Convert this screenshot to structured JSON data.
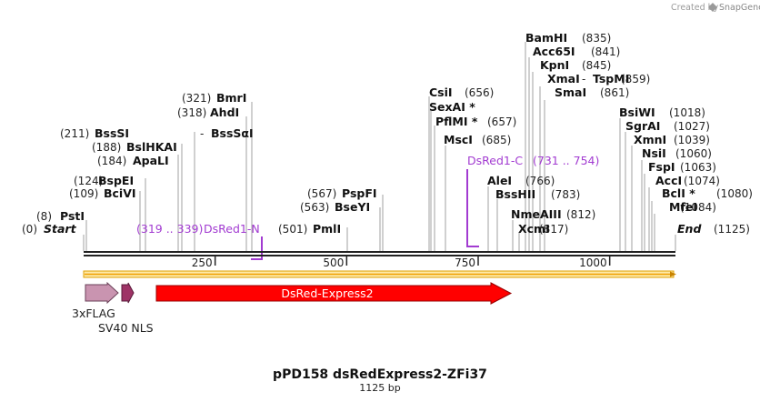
{
  "credit": {
    "prefix": "Created by",
    "brand": "SnapGene"
  },
  "title": "pPD158 dsRedExpress2-ZFi37",
  "length": "1125 bp",
  "ends": {
    "start_label": "Start",
    "start_pos": "(0)",
    "end_label": "End",
    "end_pos": "(1125)"
  },
  "ticks": [
    250,
    500,
    750,
    1000
  ],
  "sites": [
    {
      "id": "psti",
      "name": "PstI",
      "pos": "(8)",
      "bp": 8
    },
    {
      "id": "bcivi",
      "name": "BciVI",
      "pos": "(109)",
      "bp": 109
    },
    {
      "id": "bspei",
      "name": "BspEI",
      "pos": "(124)",
      "bp": 124
    },
    {
      "id": "apali",
      "name": "ApaLI",
      "pos": "(184)",
      "bp": 184
    },
    {
      "id": "bslhkai",
      "name": "BslHKAI",
      "pos": "(188)",
      "bp": 188
    },
    {
      "id": "bsssi",
      "name": "BssSI",
      "sep": "-",
      "name2": "BssSαI",
      "pos": "(211)",
      "bp": 211
    },
    {
      "id": "ahdi",
      "name": "AhdI",
      "pos": "(318)",
      "bp": 318
    },
    {
      "id": "bmri",
      "name": "BmrI",
      "pos": "(321)",
      "bp": 321
    },
    {
      "id": "pmli",
      "name": "PmlI",
      "pos": "(501)",
      "bp": 501
    },
    {
      "id": "bseyi",
      "name": "BseYI",
      "pos": "(563)",
      "bp": 563
    },
    {
      "id": "pspfi",
      "name": "PspFI",
      "pos": "(567)",
      "bp": 567
    },
    {
      "id": "csii",
      "name": "CsiI",
      "pos": "(656)",
      "bp": 656
    },
    {
      "id": "sexai",
      "name": "SexAI *",
      "pos": "",
      "bp": 656
    },
    {
      "id": "pflmi",
      "name": "PflMI *",
      "pos": "(657)",
      "bp": 657
    },
    {
      "id": "msci",
      "name": "MscI",
      "pos": "(685)",
      "bp": 685
    },
    {
      "id": "alei",
      "name": "AleI",
      "pos": "(766)",
      "bp": 766
    },
    {
      "id": "bsshii",
      "name": "BssHII",
      "pos": "(783)",
      "bp": 783
    },
    {
      "id": "nmeaiii",
      "name": "NmeAIII",
      "pos": "(812)",
      "bp": 812
    },
    {
      "id": "xcmi",
      "name": "XcmI",
      "pos": "(817)",
      "bp": 817
    },
    {
      "id": "bamhi",
      "name": "BamHI",
      "pos": "(835)",
      "bp": 835
    },
    {
      "id": "acc65i",
      "name": "Acc65I",
      "pos": "(841)",
      "bp": 841
    },
    {
      "id": "kpni",
      "name": "KpnI",
      "pos": "(845)",
      "bp": 845
    },
    {
      "id": "xmai",
      "name": "XmaI",
      "sep": "-",
      "name2": "TspMI",
      "pos": "(859)",
      "bp": 859
    },
    {
      "id": "smai",
      "name": "SmaI",
      "pos": "(861)",
      "bp": 861
    },
    {
      "id": "bsiwi",
      "name": "BsiWI",
      "pos": "(1018)",
      "bp": 1018
    },
    {
      "id": "sgrai",
      "name": "SgrAI",
      "pos": "(1027)",
      "bp": 1027
    },
    {
      "id": "xmni",
      "name": "XmnI",
      "pos": "(1039)",
      "bp": 1039
    },
    {
      "id": "nsii",
      "name": "NsiI",
      "pos": "(1060)",
      "bp": 1060
    },
    {
      "id": "fspi",
      "name": "FspI",
      "pos": "(1063)",
      "bp": 1063
    },
    {
      "id": "acci",
      "name": "AccI",
      "pos": "(1074)",
      "bp": 1074
    },
    {
      "id": "bcli",
      "name": "BclI *",
      "pos": "(1080)",
      "bp": 1080
    },
    {
      "id": "mfei",
      "name": "MfeI",
      "pos": "(1084)",
      "bp": 1084
    }
  ],
  "primers": [
    {
      "id": "dsred1-n",
      "name": "DsRed1-N",
      "range": "(319 .. 339)"
    },
    {
      "id": "dsred1-c",
      "name": "DsRed1-C",
      "range": "(731 .. 754)"
    }
  ],
  "features": [
    {
      "id": "3xflag",
      "name": "3xFLAG",
      "color": "#c994b0"
    },
    {
      "id": "sv40-nls",
      "name": "SV40 NLS",
      "color": "#9e3366"
    },
    {
      "id": "dsred-express2",
      "name": "DsRed-Express2",
      "color": "#ff0000"
    }
  ],
  "colors": {
    "primer": "#a23bd1",
    "orf": "#f5b300",
    "backbone": "#222222"
  }
}
